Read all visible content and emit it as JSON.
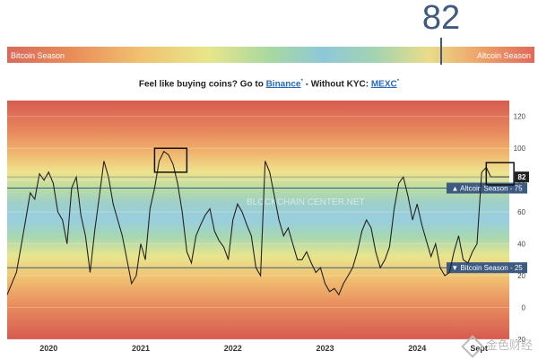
{
  "gauge": {
    "value": "82",
    "left_label": "Bitcoin Season",
    "right_label": "Altcoin Season"
  },
  "promo": {
    "prefix": "Feel like buying coins? Go to ",
    "link1": "Binance",
    "sup1": "*",
    "middle": " - Without KYC: ",
    "link2": "MEXC",
    "sup2": "*"
  },
  "watermark": {
    "chart": "BLOCKCHAIN CENTER.NET",
    "corner": "金色财经"
  },
  "colors": {
    "line": "#222222",
    "marker": "#3d5a80",
    "altcoin_line": "#3d5a80",
    "bitcoin_line": "#3d5a80"
  },
  "chart_data": {
    "type": "line",
    "ylim": [
      -20,
      130
    ],
    "yticks": [
      "-20",
      "0",
      "20",
      "40",
      "60",
      "80",
      "100",
      "120"
    ],
    "x_tick_labels": [
      "2020",
      "2021",
      "2022",
      "2023",
      "2024",
      "Sept"
    ],
    "x_tick_positions": [
      2020.0,
      2021.0,
      2022.0,
      2023.0,
      2024.0,
      2024.67
    ],
    "xlim": [
      2019.55,
      2025.0
    ],
    "thresholds": [
      {
        "label": "Altcoin Season - 75",
        "value": 75
      },
      {
        "label": "Bitcoin Season - 25",
        "value": 25
      }
    ],
    "current": {
      "label": "82",
      "value": 82
    },
    "highlight_boxes": [
      {
        "x": [
          2021.15,
          2021.5
        ],
        "y": [
          85,
          100
        ]
      },
      {
        "x": [
          2024.75,
          2025.05
        ],
        "y": [
          77,
          91
        ]
      }
    ],
    "series": [
      {
        "x": [
          2019.55,
          2019.6,
          2019.65,
          2019.7,
          2019.75,
          2019.8,
          2019.85,
          2019.9,
          2019.95,
          2020.0,
          2020.05,
          2020.1,
          2020.15,
          2020.2,
          2020.25,
          2020.3,
          2020.35,
          2020.4,
          2020.45,
          2020.5,
          2020.55,
          2020.6,
          2020.65,
          2020.7,
          2020.75,
          2020.8,
          2020.85,
          2020.9,
          2020.95,
          2021.0,
          2021.05,
          2021.1,
          2021.15,
          2021.2,
          2021.25,
          2021.3,
          2021.35,
          2021.4,
          2021.45,
          2021.5,
          2021.55,
          2021.6,
          2021.65,
          2021.7,
          2021.75,
          2021.8,
          2021.85,
          2021.9,
          2021.95,
          2022.0,
          2022.05,
          2022.1,
          2022.15,
          2022.2,
          2022.25,
          2022.3,
          2022.35,
          2022.4,
          2022.45,
          2022.5,
          2022.55,
          2022.6,
          2022.65,
          2022.7,
          2022.75,
          2022.8,
          2022.85,
          2022.9,
          2022.95,
          2023.0,
          2023.05,
          2023.1,
          2023.15,
          2023.2,
          2023.25,
          2023.3,
          2023.35,
          2023.4,
          2023.45,
          2023.5,
          2023.55,
          2023.6,
          2023.65,
          2023.7,
          2023.75,
          2023.8,
          2023.85,
          2023.9,
          2023.95,
          2024.0,
          2024.05,
          2024.1,
          2024.15,
          2024.2,
          2024.25,
          2024.3,
          2024.35,
          2024.4,
          2024.45,
          2024.5,
          2024.55,
          2024.6,
          2024.65,
          2024.7,
          2024.75,
          2024.8,
          2024.85,
          2024.9,
          2024.95,
          2025.0
        ],
        "values": [
          8,
          15,
          22,
          38,
          55,
          72,
          68,
          84,
          80,
          85,
          78,
          60,
          55,
          40,
          75,
          82,
          58,
          45,
          22,
          48,
          70,
          92,
          82,
          65,
          55,
          45,
          30,
          15,
          20,
          40,
          30,
          62,
          75,
          92,
          98,
          96,
          90,
          78,
          60,
          35,
          28,
          45,
          52,
          58,
          62,
          48,
          42,
          38,
          30,
          55,
          65,
          60,
          52,
          45,
          25,
          20,
          92,
          85,
          70,
          55,
          45,
          50,
          40,
          30,
          30,
          35,
          28,
          22,
          25,
          15,
          10,
          12,
          8,
          15,
          20,
          25,
          35,
          48,
          55,
          50,
          35,
          25,
          30,
          38,
          62,
          78,
          82,
          70,
          55,
          65,
          52,
          42,
          32,
          40,
          25,
          20,
          22,
          35,
          45,
          30,
          28,
          35,
          40,
          85,
          88,
          82,
          82,
          82,
          82,
          82
        ]
      }
    ]
  }
}
